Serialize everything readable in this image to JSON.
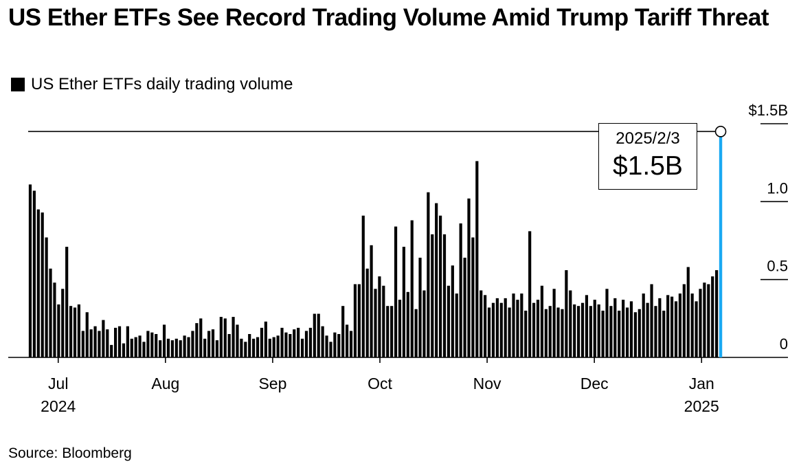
{
  "title": "US Ether ETFs See Record Trading Volume Amid Trump Tariff Threat",
  "legend": {
    "label": "US Ether ETFs daily trading volume",
    "color": "#000000"
  },
  "source": "Source: Bloomberg",
  "colors": {
    "bars": "#000000",
    "highlight": "#1aa9f2",
    "axis": "#000000"
  },
  "callout": {
    "date": "2025/2/3",
    "value": "$1.5B"
  },
  "chart_data": {
    "type": "bar",
    "title": "US Ether ETFs See Record Trading Volume Amid Trump Tariff Threat",
    "xlabel": "",
    "ylabel": "",
    "unit": "USD billions",
    "ylim": [
      0,
      1.5
    ],
    "yticks": [
      {
        "value": 0,
        "label": "0"
      },
      {
        "value": 0.5,
        "label": "0.5"
      },
      {
        "value": 1.0,
        "label": "1.0"
      },
      {
        "value": 1.5,
        "label": "$1.5B"
      }
    ],
    "xticks": [
      {
        "label": "Jul",
        "year": "2024",
        "index": 7.4
      },
      {
        "label": "Aug",
        "year": "",
        "index": 33.8
      },
      {
        "label": "Sep",
        "year": "",
        "index": 60.2
      },
      {
        "label": "Oct",
        "year": "",
        "index": 86.6
      },
      {
        "label": "Nov",
        "year": "",
        "index": 113.0
      },
      {
        "label": "Dec",
        "year": "",
        "index": 139.4
      },
      {
        "label": "Jan",
        "year": "2025",
        "index": 165.8
      }
    ],
    "reference_line": {
      "value": 1.45,
      "label": "2025/2/3"
    },
    "highlight": {
      "label": "2025/2/3",
      "value": 1.45
    },
    "series": [
      {
        "name": "US Ether ETFs daily trading volume",
        "values": [
          1.11,
          1.07,
          0.95,
          0.93,
          0.77,
          0.57,
          0.48,
          0.34,
          0.44,
          0.71,
          0.33,
          0.32,
          0.34,
          0.17,
          0.29,
          0.18,
          0.2,
          0.17,
          0.24,
          0.18,
          0.08,
          0.19,
          0.2,
          0.09,
          0.2,
          0.12,
          0.13,
          0.14,
          0.1,
          0.17,
          0.16,
          0.15,
          0.11,
          0.21,
          0.12,
          0.11,
          0.12,
          0.11,
          0.14,
          0.13,
          0.17,
          0.22,
          0.25,
          0.12,
          0.17,
          0.18,
          0.11,
          0.26,
          0.25,
          0.15,
          0.26,
          0.21,
          0.12,
          0.1,
          0.15,
          0.12,
          0.13,
          0.19,
          0.23,
          0.12,
          0.13,
          0.14,
          0.19,
          0.16,
          0.15,
          0.18,
          0.19,
          0.12,
          0.17,
          0.19,
          0.28,
          0.28,
          0.2,
          0.14,
          0.1,
          0.16,
          0.15,
          0.33,
          0.21,
          0.17,
          0.47,
          0.47,
          0.91,
          0.57,
          0.72,
          0.44,
          0.52,
          0.46,
          0.33,
          0.33,
          0.84,
          0.37,
          0.71,
          0.42,
          0.88,
          0.31,
          0.64,
          0.43,
          1.06,
          0.79,
          0.99,
          0.91,
          0.79,
          0.46,
          0.59,
          0.41,
          0.86,
          0.64,
          1.02,
          0.77,
          1.26,
          0.43,
          0.4,
          0.32,
          0.35,
          0.38,
          0.35,
          0.38,
          0.32,
          0.41,
          0.37,
          0.41,
          0.3,
          0.81,
          0.35,
          0.37,
          0.46,
          0.31,
          0.33,
          0.44,
          0.32,
          0.31,
          0.56,
          0.43,
          0.34,
          0.33,
          0.35,
          0.4,
          0.33,
          0.37,
          0.34,
          0.3,
          0.44,
          0.33,
          0.38,
          0.3,
          0.37,
          0.32,
          0.36,
          0.29,
          0.31,
          0.41,
          0.35,
          0.47,
          0.33,
          0.38,
          0.3,
          0.4,
          0.39,
          0.36,
          0.41,
          0.47,
          0.58,
          0.41,
          0.36,
          0.44,
          0.48,
          0.47,
          0.52,
          0.56,
          1.45
        ]
      }
    ]
  }
}
